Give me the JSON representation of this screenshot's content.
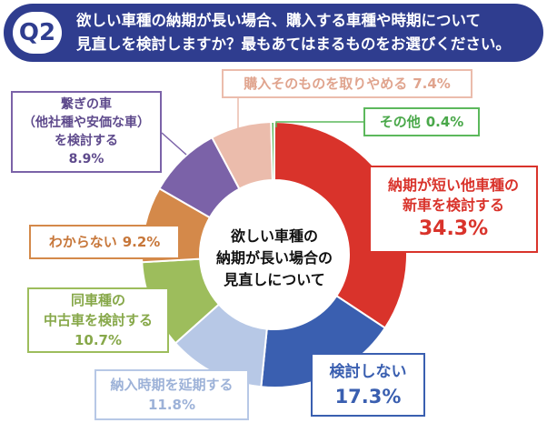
{
  "header": {
    "badge": "Q2",
    "question_line1": "欲しい車種の納期が長い場合、購入する車種や時期について",
    "question_line2": "見直しを検討しますか？最もあてはまるものをお選びください。",
    "bg_color": "#2f3d8f"
  },
  "chart_data": {
    "type": "pie",
    "center_label": [
      "欲しい車種の",
      "納期が長い場合の",
      "見直しについて"
    ],
    "slices": [
      {
        "label": "納期が短い他車種の新車を検討する",
        "value": 34.3,
        "color": "#d9332b"
      },
      {
        "label": "検討しない",
        "value": 17.3,
        "color": "#3a5fb0"
      },
      {
        "label": "納入時期を延期する",
        "value": 11.8,
        "color": "#b7c8e6"
      },
      {
        "label": "同車種の中古車を検討する",
        "value": 10.7,
        "color": "#9dbd5c"
      },
      {
        "label": "わからない",
        "value": 9.2,
        "color": "#d4894a"
      },
      {
        "label": "繋ぎの車（他社種や安価な車）を検討する",
        "value": 8.9,
        "color": "#7b62a8"
      },
      {
        "label": "購入そのものを取りやめる",
        "value": 7.4,
        "color": "#ebbcac"
      },
      {
        "label": "その他",
        "value": 0.4,
        "color": "#5cb85c"
      }
    ]
  },
  "callouts": {
    "shinsha": {
      "line1": "納期が短い他車種の",
      "line2": "新車を検討する",
      "pct": "34.3%"
    },
    "kentou_shinai": {
      "line1": "検討しない",
      "pct": "17.3%"
    },
    "enki": {
      "line1": "納入時期を延期する",
      "pct": "11.8%"
    },
    "chuko": {
      "line1": "同車種の",
      "line2": "中古車を検討する",
      "pct": "10.7%"
    },
    "wakaranai": {
      "line1": "わからない",
      "pct": "9.2%"
    },
    "tsunagi": {
      "line1": "繋ぎの車",
      "line2": "（他社種や安価な車）",
      "line3": "を検討する",
      "pct": "8.9%"
    },
    "toriyame": {
      "line1": "購入そのものを取りやめる",
      "pct": "7.4%"
    },
    "sonota": {
      "line1": "その他",
      "pct": "0.4%"
    }
  }
}
